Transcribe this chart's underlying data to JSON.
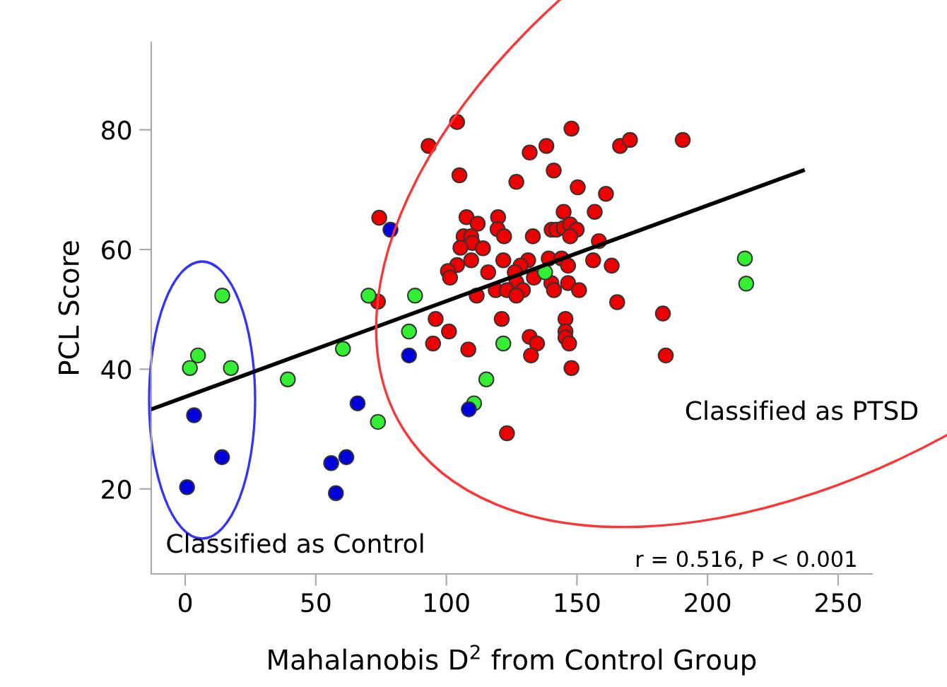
{
  "chart_data": {
    "type": "scatter",
    "xlabel": "Mahalanobis D$^{2}$ from Control Group",
    "ylabel": "PCL Score",
    "xlim": [
      -13,
      263
    ],
    "ylim": [
      5.8,
      94.6
    ],
    "xticks": [
      0,
      50,
      100,
      150,
      200,
      250
    ],
    "yticks": [
      20,
      40,
      60,
      80
    ],
    "grid": false,
    "marker": "circle",
    "series": [
      {
        "color": "#ee0000",
        "x": [
          74.3,
          73.8,
          93.2,
          104.1,
          147.9,
          131.9,
          138.3,
          166.5,
          170.3,
          190.5,
          105,
          141.1,
          126.8,
          150.3,
          161.1,
          144.9,
          156.8,
          107.7,
          119.8,
          112,
          119.6,
          122.1,
          106.6,
          109.5,
          110,
          105.4,
          114,
          133.1,
          140.3,
          142.1,
          144.9,
          147.4,
          149.9,
          147.4,
          158.4,
          109.5,
          104.1,
          100.6,
          101.4,
          116,
          121.8,
          131.3,
          128.4,
          126.2,
          139.2,
          144.1,
          146.6,
          156.2,
          163.3,
          133.5,
          126.8,
          118.9,
          123.2,
          129.3,
          126.8,
          140.2,
          141.2,
          146.6,
          150.8,
          111.6,
          165.4,
          182.9,
          95.9,
          121.2,
          145.6,
          101,
          145.6,
          94.9,
          108.4,
          131.9,
          134.7,
          145.6,
          147,
          132.4,
          184,
          147.9,
          123.2
        ],
        "values": [
          65.3,
          51.3,
          77.3,
          81.3,
          80.2,
          76.2,
          77.3,
          77.3,
          78.3,
          78.3,
          72.4,
          73.2,
          71.3,
          70.4,
          69.3,
          66.3,
          66.3,
          65.4,
          65.4,
          64.3,
          63.4,
          62.2,
          62.2,
          62.2,
          61.1,
          60.3,
          60.2,
          62.2,
          63.3,
          63.3,
          63.6,
          64.2,
          63.3,
          62.2,
          61.4,
          58.2,
          57.4,
          56.4,
          55.3,
          56.2,
          58.2,
          58.2,
          57.3,
          56.2,
          58.5,
          58.5,
          57.3,
          58.2,
          57.3,
          55.3,
          54.5,
          53.2,
          53.2,
          53.2,
          52.3,
          54.4,
          53.2,
          54.4,
          53.2,
          52.3,
          51.2,
          49.3,
          48.4,
          48.4,
          48.4,
          46.3,
          46.3,
          44.3,
          43.3,
          45.4,
          44.3,
          45.3,
          44.3,
          42.3,
          42.3,
          40.2,
          29.3
        ]
      },
      {
        "color": "#33ee33",
        "x": [
          14.2,
          4.9,
          1.8,
          17.5,
          39.3,
          60.4,
          73.8,
          70.2,
          88.0,
          85.7,
          121.8,
          137.8,
          115.3,
          110.6,
          214.3,
          214.8
        ],
        "values": [
          52.3,
          42.3,
          40.2,
          40.2,
          38.3,
          43.4,
          31.2,
          52.3,
          52.3,
          46.3,
          44.3,
          56.2,
          38.3,
          34.3,
          58.5,
          54.3
        ]
      },
      {
        "color": "#0000dd",
        "x": [
          0.7,
          3.4,
          14.1,
          55.9,
          61.7,
          57.7,
          66.0,
          85.7,
          78.6,
          108.6
        ],
        "values": [
          20.3,
          32.3,
          25.3,
          24.3,
          25.3,
          19.3,
          34.3,
          42.3,
          63.3,
          33.3
        ]
      },
      {
        "type": "line",
        "color": "#000000",
        "x": [
          -13,
          236.5
        ],
        "values": [
          33.3,
          73.2
        ],
        "marker": "none",
        "line_style": "solid"
      }
    ],
    "annotations": [
      "Classified as PTSD",
      "Classified as Control",
      "r = 0.516, P < 0.001"
    ]
  }
}
